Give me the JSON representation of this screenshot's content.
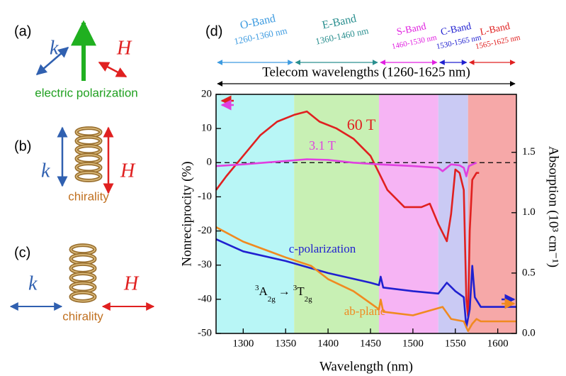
{
  "panels": [
    {
      "label": "(a)",
      "k": "k",
      "H": "H",
      "caption": "electric polarization"
    },
    {
      "label": "(b)",
      "k": "k",
      "H": "H",
      "caption": "chirality"
    },
    {
      "label": "(c)",
      "k": "k",
      "H": "H",
      "caption": "chirality"
    }
  ],
  "chart_data": {
    "type": "line",
    "label": "(d)",
    "xlabel": "Wavelength (nm)",
    "ylabel": "Nonreciprocity (%)",
    "y2label": "Absorption (10³ cm⁻¹)",
    "xlim": [
      1268,
      1622
    ],
    "xticks": [
      1300,
      1350,
      1400,
      1450,
      1500,
      1550,
      1600
    ],
    "ylim": [
      -50,
      20
    ],
    "yticks": [
      -50,
      -40,
      -30,
      -20,
      -10,
      0,
      10,
      20
    ],
    "y2lim": [
      0,
      1.98
    ],
    "y2ticks": [
      {
        "value": 0,
        "label": "0.0"
      },
      0.5,
      {
        "value": 1,
        "label": "1.0"
      },
      1.5
    ],
    "hline": 0,
    "bands": [
      {
        "name": "O-Band",
        "range": "1260-1360 nm",
        "start": 1260,
        "end": 1360,
        "color": "#b8f6f6",
        "text_color": "#3d9be0"
      },
      {
        "name": "E-Band",
        "range": "1360-1460 nm",
        "start": 1360,
        "end": 1460,
        "color": "#c8f0b4",
        "text_color": "#2a8f8f"
      },
      {
        "name": "S-Band",
        "range": "1460-1530 nm",
        "start": 1460,
        "end": 1530,
        "color": "#f6b4f4",
        "text_color": "#e020e0"
      },
      {
        "name": "C-Band",
        "range": "1530-1565 nm",
        "start": 1530,
        "end": 1565,
        "color": "#cacaf4",
        "text_color": "#2020d0"
      },
      {
        "name": "L-Band",
        "range": "1565-1625 nm",
        "start": 1565,
        "end": 1625,
        "color": "#f6a8a8",
        "text_color": "#e02020"
      }
    ],
    "telecom": {
      "label": "Telecom wavelengths (1260-1625 nm)",
      "start": 1260,
      "end": 1625
    },
    "transition": [
      "3",
      "A",
      "2g",
      "→",
      "3",
      "T",
      "2g"
    ],
    "series": [
      {
        "name": "60 T",
        "color": "#e02020",
        "x": [
          1268,
          1280,
          1300,
          1320,
          1340,
          1360,
          1375,
          1390,
          1410,
          1430,
          1450,
          1460,
          1470,
          1490,
          1510,
          1520,
          1530,
          1540,
          1545,
          1550,
          1555,
          1560,
          1563,
          1565,
          1567,
          1570,
          1575,
          1578
        ],
        "values": [
          -8,
          -4,
          2,
          8,
          12,
          14,
          15,
          12,
          10,
          7,
          2,
          -3,
          -8,
          -13,
          -13,
          -12,
          -18,
          -23,
          -15,
          -2,
          -3,
          -8,
          -40,
          -45,
          -20,
          -5,
          -3,
          -3
        ]
      },
      {
        "name": "3.1 T",
        "color": "#e040e0",
        "x": [
          1268,
          1300,
          1350,
          1375,
          1400,
          1430,
          1460,
          1500,
          1530,
          1535,
          1545,
          1555,
          1560,
          1563,
          1566,
          1575
        ],
        "values": [
          -1,
          -0.5,
          0.5,
          1,
          0.8,
          0,
          -0.5,
          -1,
          -1.5,
          -2.5,
          -0.5,
          -0.8,
          -1.5,
          -4,
          -1,
          0
        ]
      },
      {
        "name": "c-polarization",
        "color": "#2020d0",
        "axis": "y2",
        "x": [
          1268,
          1300,
          1350,
          1400,
          1450,
          1460,
          1462,
          1465,
          1500,
          1530,
          1540,
          1550,
          1560,
          1563,
          1567,
          1570,
          1573,
          1580,
          1622
        ],
        "values": [
          0.78,
          0.68,
          0.6,
          0.5,
          0.42,
          0.4,
          0.47,
          0.38,
          0.35,
          0.33,
          0.42,
          0.35,
          0.3,
          0.05,
          0.2,
          0.56,
          0.3,
          0.22,
          0.22
        ]
      },
      {
        "name": "ab-plane",
        "color": "#f08a20",
        "axis": "y2",
        "x": [
          1268,
          1300,
          1350,
          1380,
          1400,
          1430,
          1450,
          1460,
          1462,
          1465,
          1500,
          1535,
          1545,
          1560,
          1565,
          1570,
          1575,
          1580,
          1622
        ],
        "values": [
          0.88,
          0.76,
          0.63,
          0.56,
          0.45,
          0.35,
          0.25,
          0.2,
          0.28,
          0.18,
          0.15,
          0.22,
          0.12,
          0.1,
          0.02,
          0.08,
          0.12,
          0.1,
          0.1
        ]
      }
    ]
  }
}
